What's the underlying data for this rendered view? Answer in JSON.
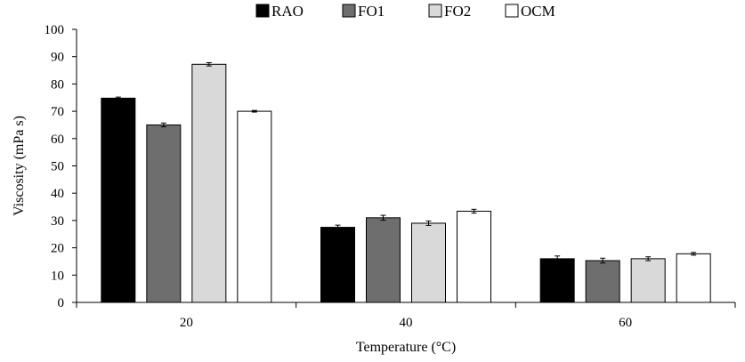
{
  "chart_data": {
    "type": "bar",
    "title": "",
    "xlabel": "Temperature (°C)",
    "ylabel": "Viscosity (mPa s)",
    "ylim": [
      0,
      100
    ],
    "yticks": [
      "0",
      "10",
      "20",
      "30",
      "40",
      "50",
      "60",
      "70",
      "80",
      "90",
      "100"
    ],
    "categories": [
      "20",
      "40",
      "60"
    ],
    "legend_position": "top",
    "grid": false,
    "error_bars": true,
    "series": [
      {
        "name": "RAO",
        "color": "#000000",
        "values": [
          74.8,
          27.5,
          16.0
        ],
        "errors": [
          0.4,
          0.8,
          1.0
        ]
      },
      {
        "name": "FO1",
        "color": "#6e6e6e",
        "values": [
          65.0,
          31.0,
          15.3
        ],
        "errors": [
          0.7,
          0.9,
          0.9
        ]
      },
      {
        "name": "FO2",
        "color": "#d9d9d9",
        "values": [
          87.2,
          29.0,
          16.0
        ],
        "errors": [
          0.6,
          0.8,
          0.7
        ]
      },
      {
        "name": "OCM",
        "color": "#ffffff",
        "values": [
          70.0,
          33.4,
          17.8
        ],
        "errors": [
          0.3,
          0.7,
          0.5
        ]
      }
    ]
  }
}
